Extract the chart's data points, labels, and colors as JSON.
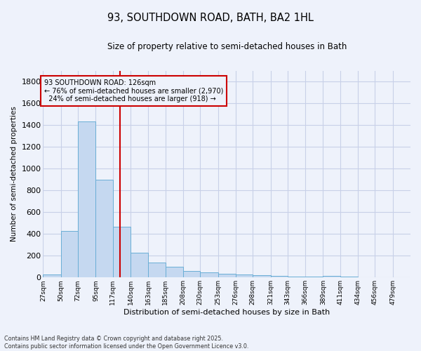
{
  "title": "93, SOUTHDOWN ROAD, BATH, BA2 1HL",
  "subtitle": "Size of property relative to semi-detached houses in Bath",
  "xlabel": "Distribution of semi-detached houses by size in Bath",
  "ylabel": "Number of semi-detached properties",
  "bar_color": "#c5d8f0",
  "bar_edge_color": "#6aaed6",
  "background_color": "#eef2fb",
  "grid_color": "#c8d0e8",
  "vline_color": "#cc0000",
  "vline_x": 126,
  "annotation_line1": "93 SOUTHDOWN ROAD: 126sqm",
  "annotation_line2": "← 76% of semi-detached houses are smaller (2,970)",
  "annotation_line3": "  24% of semi-detached houses are larger (918) →",
  "annotation_box_color": "#cc0000",
  "footer": "Contains HM Land Registry data © Crown copyright and database right 2025.\nContains public sector information licensed under the Open Government Licence v3.0.",
  "bin_edges": [
    27,
    50,
    72,
    95,
    117,
    140,
    163,
    185,
    208,
    230,
    253,
    276,
    298,
    321,
    343,
    366,
    389,
    411,
    434,
    456,
    479,
    502
  ],
  "bin_labels": [
    "27sqm",
    "50sqm",
    "72sqm",
    "95sqm",
    "117sqm",
    "140sqm",
    "163sqm",
    "185sqm",
    "208sqm",
    "230sqm",
    "253sqm",
    "276sqm",
    "298sqm",
    "321sqm",
    "343sqm",
    "366sqm",
    "389sqm",
    "411sqm",
    "434sqm",
    "456sqm",
    "479sqm"
  ],
  "counts": [
    30,
    425,
    1430,
    900,
    465,
    225,
    140,
    100,
    60,
    45,
    35,
    30,
    20,
    15,
    10,
    8,
    15,
    10,
    5,
    5,
    2
  ],
  "ylim": [
    0,
    1900
  ],
  "yticks": [
    0,
    200,
    400,
    600,
    800,
    1000,
    1200,
    1400,
    1600,
    1800
  ]
}
